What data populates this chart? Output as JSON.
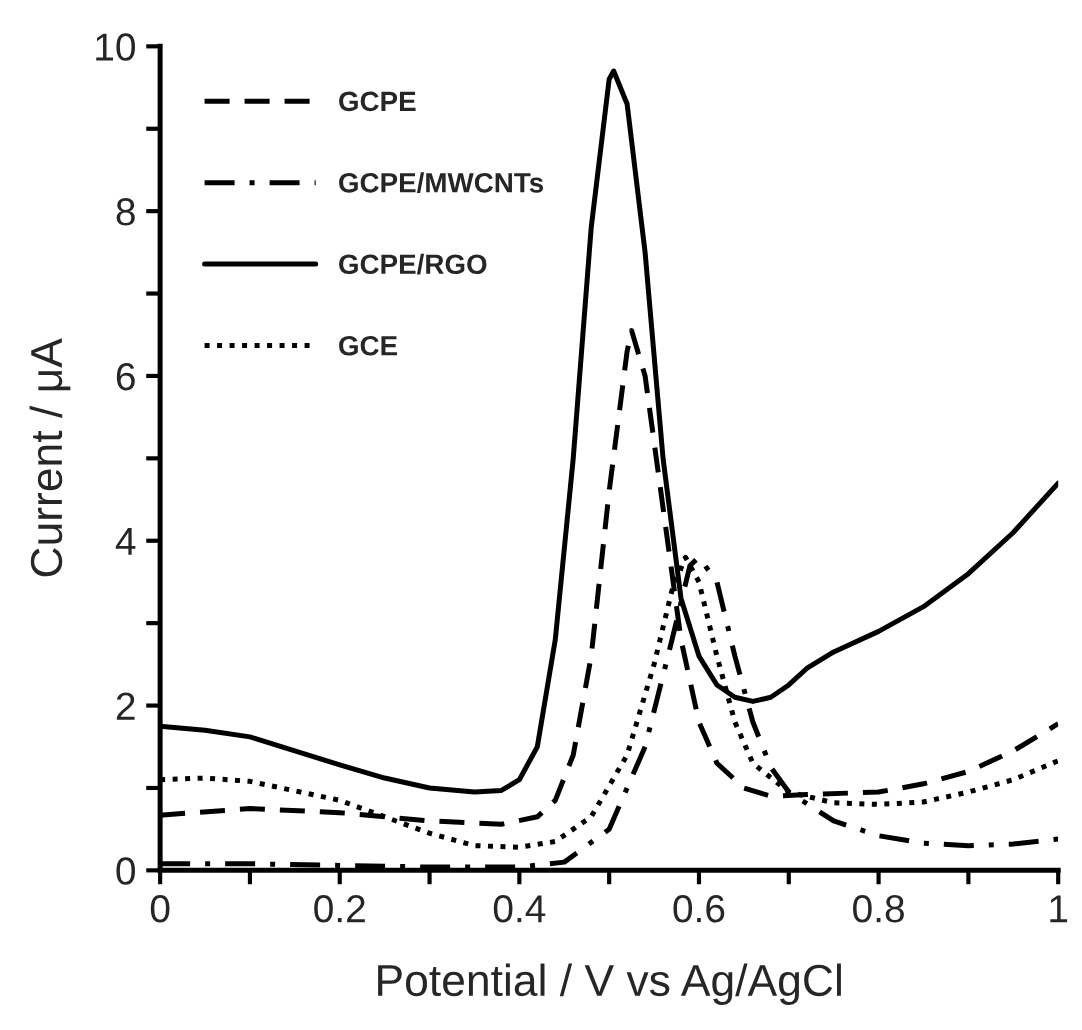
{
  "chart_data": {
    "type": "line",
    "xlabel": "Potential / V vs Ag/AgCl",
    "ylabel": "Current / μA",
    "xlim": [
      0,
      1
    ],
    "ylim": [
      0,
      10
    ],
    "xticks": [
      0,
      {
        "value": 0.1,
        "label": null
      },
      0.2,
      {
        "value": 0.3,
        "label": null
      },
      0.4,
      {
        "value": 0.5,
        "label": null
      },
      0.6,
      {
        "value": 0.7,
        "label": null
      },
      0.8,
      {
        "value": 0.9,
        "label": null
      },
      1
    ],
    "yticks": [
      0,
      {
        "value": 1,
        "label": null
      },
      2,
      {
        "value": 3,
        "label": null
      },
      4,
      {
        "value": 5,
        "label": null
      },
      6,
      {
        "value": 7,
        "label": null
      },
      8,
      {
        "value": 9,
        "label": null
      },
      10
    ],
    "grid": false,
    "legend": "top left",
    "marker": "none",
    "series": [
      {
        "name": "GCPE",
        "color": "#000000",
        "line_style": "dashed",
        "x": [
          0,
          0.1,
          0.2,
          0.3,
          0.38,
          0.42,
          0.44,
          0.46,
          0.48,
          0.5,
          0.52,
          0.525,
          0.54,
          0.56,
          0.58,
          0.6,
          0.62,
          0.65,
          0.68,
          0.72,
          0.8,
          0.85,
          0.9,
          0.95,
          1.0
        ],
        "values": [
          0.67,
          0.75,
          0.7,
          0.6,
          0.56,
          0.65,
          0.85,
          1.4,
          2.6,
          4.6,
          6.3,
          6.55,
          6.0,
          4.4,
          2.8,
          1.8,
          1.3,
          1.0,
          0.9,
          0.92,
          0.95,
          1.05,
          1.2,
          1.45,
          1.78
        ]
      },
      {
        "name": "GCPE/MWCNTs",
        "color": "#000000",
        "line_style": "dashdot",
        "x": [
          0,
          0.1,
          0.2,
          0.3,
          0.4,
          0.45,
          0.5,
          0.54,
          0.57,
          0.59,
          0.6,
          0.62,
          0.64,
          0.66,
          0.68,
          0.7,
          0.75,
          0.8,
          0.85,
          0.9,
          0.95,
          1.0
        ],
        "values": [
          0.08,
          0.08,
          0.06,
          0.04,
          0.04,
          0.1,
          0.5,
          1.5,
          2.8,
          3.7,
          3.8,
          3.5,
          2.6,
          1.8,
          1.25,
          0.95,
          0.6,
          0.42,
          0.33,
          0.3,
          0.32,
          0.38
        ]
      },
      {
        "name": "GCPE/RGO",
        "color": "#000000",
        "line_style": "solid",
        "x": [
          0,
          0.05,
          0.1,
          0.15,
          0.2,
          0.25,
          0.3,
          0.35,
          0.38,
          0.4,
          0.42,
          0.44,
          0.46,
          0.48,
          0.5,
          0.505,
          0.52,
          0.54,
          0.56,
          0.58,
          0.6,
          0.62,
          0.64,
          0.66,
          0.68,
          0.7,
          0.72,
          0.75,
          0.8,
          0.85,
          0.9,
          0.95,
          1.0
        ],
        "values": [
          1.75,
          1.7,
          1.62,
          1.45,
          1.28,
          1.12,
          1.0,
          0.95,
          0.97,
          1.1,
          1.5,
          2.8,
          5.0,
          7.8,
          9.6,
          9.7,
          9.3,
          7.5,
          5.0,
          3.3,
          2.6,
          2.25,
          2.1,
          2.05,
          2.1,
          2.25,
          2.45,
          2.65,
          2.9,
          3.2,
          3.6,
          4.1,
          4.7
        ]
      },
      {
        "name": "GCE",
        "color": "#000000",
        "line_style": "dotted",
        "x": [
          0,
          0.05,
          0.1,
          0.2,
          0.3,
          0.35,
          0.4,
          0.44,
          0.48,
          0.52,
          0.55,
          0.57,
          0.585,
          0.6,
          0.62,
          0.64,
          0.66,
          0.7,
          0.75,
          0.8,
          0.85,
          0.9,
          0.95,
          1.0
        ],
        "values": [
          1.1,
          1.12,
          1.08,
          0.85,
          0.45,
          0.3,
          0.28,
          0.35,
          0.65,
          1.4,
          2.5,
          3.4,
          3.8,
          3.5,
          2.6,
          1.8,
          1.3,
          0.95,
          0.82,
          0.8,
          0.83,
          0.95,
          1.1,
          1.33
        ]
      }
    ]
  }
}
